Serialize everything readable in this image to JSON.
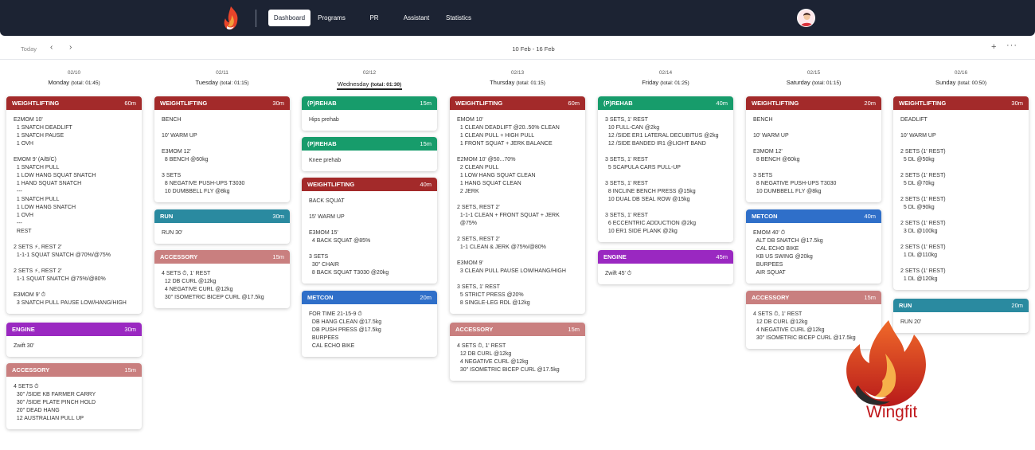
{
  "nav": {
    "items": [
      "Dashboard",
      "Programs",
      "PR",
      "Assistant",
      "Statistics"
    ]
  },
  "toolbar": {
    "today": "Today",
    "prev": "‹",
    "next": "›",
    "range": "10 Feb - 16 Feb",
    "add": "+",
    "more": "···"
  },
  "brand": {
    "name": "Wingfit",
    "color": "#c0181c"
  },
  "colors": {
    "weightlifting": "#a32a2a",
    "prehab": "#179c6b",
    "run": "#2a8aa0",
    "accessory": "#c97f7f",
    "metcon": "#2f6fc9",
    "engine": "#9a28c1"
  },
  "days": [
    {
      "date": "02/10",
      "name": "Monday",
      "total": "(total: 01:45)"
    },
    {
      "date": "02/11",
      "name": "Tuesday",
      "total": "(total: 01:15)"
    },
    {
      "date": "02/12",
      "name": "Wednesday",
      "total": "(total: 01:30)"
    },
    {
      "date": "02/13",
      "name": "Thursday",
      "total": "(total: 01:15)"
    },
    {
      "date": "02/14",
      "name": "Friday",
      "total": "(total: 01:25)"
    },
    {
      "date": "02/15",
      "name": "Saturday",
      "total": "(total: 01:15)"
    },
    {
      "date": "02/16",
      "name": "Sunday",
      "total": "(total: 00:50)"
    }
  ],
  "cards": [
    {
      "title": "WEIGHTLIFTING",
      "min": "60m",
      "body": "E2MOM 10'\n  1 SNATCH DEADLIFT\n  1 SNATCH PAUSE\n  1 OVH\n\nEMOM 9' (A/B/C)\n  1 SNATCH PULL\n  1 LOW HANG SQUAT SNATCH\n  1 HAND SQUAT SNATCH\n  ---\n  1 SNATCH PULL\n  1 LOW HANG SNATCH\n  1 OVH\n  ---\n  REST\n\n2 SETS ⚡, REST 2'\n  1-1-1 SQUAT SNATCH @70%/@75%\n\n2 SETS ⚡, REST 2'\n  1-1 SQUAT SNATCH @75%/@80%\n\nE3MOM 9' ⏱\n  3 SNATCH PULL PAUSE LOW/HANG/HIGH"
    },
    {
      "title": "ENGINE",
      "min": "30m",
      "body": "Zwift 30'"
    },
    {
      "title": "ACCESSORY",
      "min": "15m",
      "body": "4 SETS ⏱\n  30\" /SIDE KB FARMER CARRY\n  30\" /SIDE PLATE PINCH HOLD\n  20\" DEAD HANG\n  12 AUSTRALIAN PULL UP"
    },
    {
      "title": "WEIGHTLIFTING",
      "min": "30m",
      "body": "BENCH\n\n10' WARM UP\n\nE3MOM 12'\n  8 BENCH @60kg\n\n3 SETS\n  8 NEGATIVE PUSH-UPS T3030\n  10 DUMBBELL FLY @8kg"
    },
    {
      "title": "RUN",
      "min": "30m",
      "body": "RUN 30'"
    },
    {
      "title": "ACCESSORY",
      "min": "15m",
      "body": "4 SETS ⏱, 1' REST\n  12 DB CURL @12kg\n  4 NEGATIVE CURL @12kg\n  30\" ISOMETRIC BICEP CURL @17.5kg"
    },
    {
      "title": "(P)REHAB",
      "min": "15m",
      "body": "Hips prehab"
    },
    {
      "title": "(P)REHAB",
      "min": "15m",
      "body": "Knee prehab"
    },
    {
      "title": "WEIGHTLIFTING",
      "min": "40m",
      "body": "BACK SQUAT\n\n15' WARM UP\n\nE3MOM 15'\n  4 BACK SQUAT @85%\n\n3 SETS\n  30\" CHAIR\n  8 BACK SQUAT T3030 @20kg"
    },
    {
      "title": "METCON",
      "min": "20m",
      "body": "FOR TIME 21-15-9 ⏱\n  DB HANG CLEAN @17.5kg\n  DB PUSH PRESS @17.5kg\n  BURPEES\n  CAL ECHO BIKE"
    },
    {
      "title": "WEIGHTLIFTING",
      "min": "60m",
      "body": "EMOM 10'\n  1 CLEAN DEADLIFT @20..50% CLEAN\n  1 CLEAN PULL + HIGH PULL\n  1 FRONT SQUAT + JERK BALANCE\n\nE2MOM 10' @50...70%\n  2 CLEAN PULL\n  1 LOW HANG SQUAT CLEAN\n  1 HANG SQUAT CLEAN\n  2 JERK\n\n2 SETS, REST 2'\n  1-1-1 CLEAN + FRONT SQUAT + JERK\n  @75%\n\n2 SETS, REST 2'\n  1-1 CLEAN & JERK @75%/@80%\n\nE3MOM 9'\n  3 CLEAN PULL PAUSE LOW/HANG/HIGH\n\n3 SETS, 1' REST\n  5 STRICT PRESS @20%\n  8 SINGLE-LEG RDL @12kg"
    },
    {
      "title": "ACCESSORY",
      "min": "15m",
      "body": "4 SETS ⏱, 1' REST\n  12 DB CURL @12kg\n  4 NEGATIVE CURL @12kg\n  30\" ISOMETRIC BICEP CURL @17.5kg"
    },
    {
      "title": "(P)REHAB",
      "min": "40m",
      "body": "3 SETS, 1' REST\n  10 FULL-CAN @2kg\n  12 /SIDE ER1 LATERAL DECUBITUS @2kg\n  12 /SIDE BANDED IR1 @LIGHT BAND\n\n3 SETS, 1' REST\n  5 SCAPULA CARS PULL-UP\n\n3 SETS, 1' REST\n  8 INCLINE BENCH PRESS @15kg\n  10 DUAL DB SEAL ROW @15kg\n\n3 SETS, 1' REST\n  6 ECCENTRIC ADDUCTION @2kg\n  10 ER1 SIDE PLANK @2kg"
    },
    {
      "title": "ENGINE",
      "min": "45m",
      "body": "Zwift 45' ⏱"
    },
    {
      "title": "WEIGHTLIFTING",
      "min": "20m",
      "body": "BENCH\n\n10' WARM UP\n\nE3MOM 12'\n  8 BENCH @60kg\n\n3 SETS\n  8 NEGATIVE PUSH-UPS T3030\n  10 DUMBBELL FLY @8kg"
    },
    {
      "title": "METCON",
      "min": "40m",
      "body": "EMOM 40' ⏱\n  ALT DB SNATCH @17.5kg\n  CAL ECHO BIKE\n  KB US SWING @20kg\n  BURPEES\n  AIR SQUAT"
    },
    {
      "title": "ACCESSORY",
      "min": "15m",
      "body": "4 SETS ⏱, 1' REST\n  12 DB CURL @12kg\n  4 NEGATIVE CURL @12kg\n  30\" ISOMETRIC BICEP CURL @17.5kg"
    },
    {
      "title": "WEIGHTLIFTING",
      "min": "30m",
      "body": "DEADLIFT\n\n10' WARM UP\n\n2 SETS (1' REST)\n  5 DL @50kg\n\n2 SETS (1' REST)\n  5 DL @70kg\n\n2 SETS (1' REST)\n  5 DL @90kg\n\n2 SETS (1' REST)\n  3 DL @100kg\n\n2 SETS (1' REST)\n  1 DL @110kg\n\n2 SETS (1' REST)\n  1 DL @120kg"
    },
    {
      "title": "RUN",
      "min": "20m",
      "body": "RUN 20'"
    }
  ]
}
